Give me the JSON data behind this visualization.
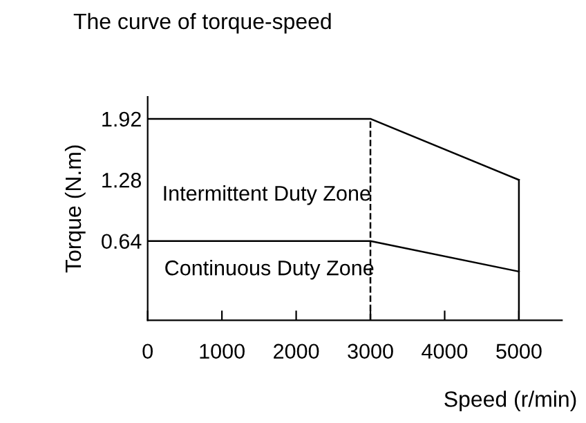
{
  "chart_data": {
    "type": "line",
    "title": "The curve of torque-speed",
    "xlabel": "Speed (r/min)",
    "ylabel": "Torque (N.m)",
    "x": [
      0,
      3000,
      5000
    ],
    "series": [
      {
        "color": "#000000",
        "values": [
          1.92,
          1.92,
          1.28
        ]
      },
      {
        "color": "#000000",
        "values": [
          0.64,
          0.64,
          0.32
        ]
      }
    ],
    "xlim": [
      0,
      5580
    ],
    "xticks": [
      0,
      1000,
      2000,
      3000,
      4000,
      5000
    ],
    "ylim": [
      -0.19,
      2.15
    ],
    "yticks": [
      0.64,
      1.28,
      1.92
    ],
    "ref_lines": [
      {
        "axis": "x",
        "value": 3000,
        "line_style": "dashed",
        "color": "#000000"
      },
      {
        "axis": "x",
        "value": 5000,
        "line_style": "solid",
        "color": "#000000"
      }
    ],
    "annotations": [
      "Intermittent Duty Zone",
      "Continuous Duty Zone"
    ],
    "grid": false,
    "legend": false,
    "marker": "none",
    "line_style": "solid"
  }
}
